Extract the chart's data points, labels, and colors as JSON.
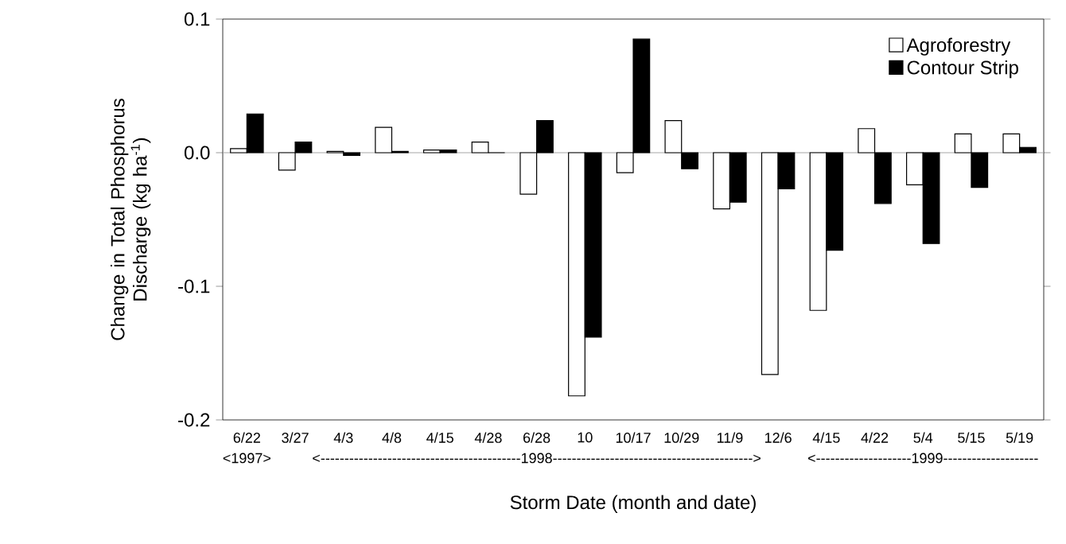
{
  "chart_data": {
    "type": "bar",
    "xlabel": "Storm Date (month and date)",
    "ylabel": "Change in Total Phosphorus Discharge (kg ha$^{-1}$)",
    "categories": [
      "6/22",
      "3/27",
      "4/3",
      "4/8",
      "4/15",
      "4/28",
      "6/28",
      "10",
      "10/17",
      "10/29",
      "11/9",
      "12/6",
      "4/15",
      "4/22",
      "5/4",
      "5/15",
      "5/19"
    ],
    "series": [
      {
        "name": "Agroforestry",
        "color": "#ffffff",
        "values": [
          0.003,
          -0.013,
          0.001,
          0.019,
          0.002,
          0.008,
          -0.031,
          -0.182,
          -0.015,
          0.024,
          -0.042,
          -0.166,
          -0.118,
          0.018,
          -0.024,
          0.014,
          0.014
        ]
      },
      {
        "name": "Contour Strip",
        "color": "#000000",
        "values": [
          0.029,
          0.008,
          -0.002,
          0.001,
          0.002,
          0,
          0.024,
          -0.138,
          0.085,
          -0.012,
          -0.037,
          -0.027,
          -0.073,
          -0.038,
          -0.068,
          -0.026,
          0.004
        ]
      }
    ],
    "ylim": [
      -0.2,
      0.1
    ],
    "yticks": [
      -0.2,
      -0.1,
      {
        "value": 0,
        "label": "0.0"
      },
      0.1
    ],
    "annotations": [
      "<1997>",
      "<------------------------------------------1998------------------------------------------>",
      "<--------------------1999--------------------"
    ],
    "legend": "top right"
  }
}
